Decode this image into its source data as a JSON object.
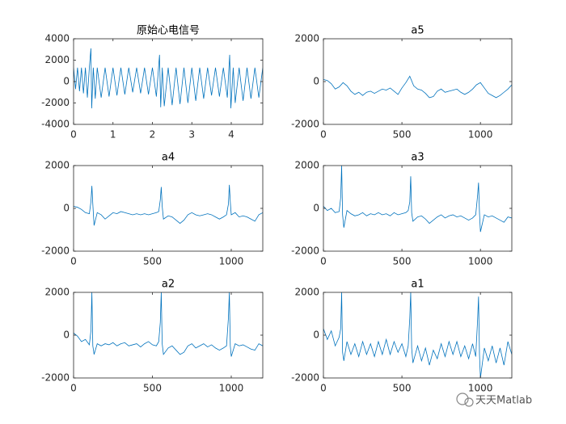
{
  "chart_data": [
    {
      "type": "line",
      "title": "原始心电信号",
      "color": "#0072bd",
      "x": [
        0,
        0.05,
        0.1,
        0.15,
        0.2,
        0.25,
        0.3,
        0.35,
        0.4,
        0.44,
        0.46,
        0.5,
        0.55,
        0.6,
        0.7,
        0.8,
        0.9,
        1.0,
        1.1,
        1.2,
        1.3,
        1.4,
        1.5,
        1.6,
        1.7,
        1.8,
        1.9,
        2.0,
        2.1,
        2.18,
        2.21,
        2.25,
        2.3,
        2.4,
        2.5,
        2.6,
        2.7,
        2.8,
        2.9,
        3.0,
        3.1,
        3.2,
        3.3,
        3.4,
        3.5,
        3.6,
        3.7,
        3.8,
        3.9,
        3.96,
        3.99,
        4.05,
        4.1,
        4.2,
        4.3,
        4.4,
        4.5,
        4.6,
        4.7,
        4.8
      ],
      "values": [
        1300,
        -700,
        1300,
        -900,
        1300,
        -1100,
        1300,
        -1500,
        1300,
        3100,
        -2500,
        1300,
        -1600,
        1300,
        -1500,
        1300,
        -1400,
        1300,
        -1300,
        1300,
        -1200,
        1300,
        -1000,
        1300,
        -1100,
        1300,
        -1200,
        1300,
        -1400,
        2500,
        -2400,
        1300,
        -2300,
        1300,
        -2200,
        1300,
        -2100,
        1300,
        -2000,
        1300,
        -1800,
        1300,
        -1600,
        1300,
        -1300,
        1300,
        -1400,
        1300,
        -1500,
        2500,
        -2500,
        1300,
        -2000,
        1300,
        -1800,
        1300,
        -1600,
        1300,
        -1500,
        1300
      ],
      "xlim": [
        0,
        4.8
      ],
      "ylim": [
        -4000,
        4000
      ],
      "xticks": [
        0,
        1,
        2,
        3,
        4
      ],
      "yticks": [
        -4000,
        -2000,
        0,
        2000,
        4000
      ]
    },
    {
      "type": "line",
      "title": "a5",
      "color": "#0072bd",
      "x": [
        0,
        25,
        50,
        75,
        100,
        125,
        150,
        175,
        200,
        225,
        250,
        275,
        300,
        325,
        350,
        375,
        400,
        425,
        450,
        475,
        500,
        525,
        550,
        575,
        600,
        625,
        650,
        675,
        700,
        725,
        750,
        775,
        800,
        825,
        850,
        875,
        900,
        925,
        950,
        975,
        1000,
        1025,
        1050,
        1075,
        1100,
        1125,
        1150,
        1175,
        1200
      ],
      "values": [
        100,
        50,
        -100,
        -350,
        -250,
        -50,
        -200,
        -450,
        -600,
        -500,
        -650,
        -500,
        -450,
        -550,
        -450,
        -350,
        -400,
        -300,
        -450,
        -600,
        -300,
        -50,
        250,
        -200,
        -350,
        -400,
        -550,
        -750,
        -700,
        -450,
        -350,
        -500,
        -450,
        -400,
        -350,
        -500,
        -600,
        -500,
        -350,
        -150,
        -50,
        -300,
        -550,
        -650,
        -750,
        -650,
        -500,
        -350,
        -150
      ],
      "xlim": [
        0,
        1200
      ],
      "ylim": [
        -2000,
        2000
      ],
      "xticks": [
        0,
        500,
        1000
      ],
      "yticks": [
        -2000,
        0,
        2000
      ]
    },
    {
      "type": "line",
      "title": "a4",
      "color": "#0072bd",
      "x": [
        0,
        25,
        50,
        75,
        100,
        110,
        116,
        122,
        130,
        150,
        175,
        200,
        225,
        250,
        275,
        300,
        325,
        350,
        375,
        400,
        425,
        450,
        475,
        500,
        525,
        540,
        550,
        556,
        562,
        570,
        600,
        625,
        650,
        675,
        700,
        725,
        750,
        775,
        800,
        825,
        850,
        875,
        900,
        925,
        950,
        970,
        982,
        988,
        994,
        1000,
        1025,
        1050,
        1075,
        1100,
        1125,
        1150,
        1175,
        1200
      ],
      "values": [
        100,
        50,
        -50,
        -200,
        -250,
        300,
        1050,
        200,
        -800,
        -200,
        -300,
        -500,
        -350,
        -200,
        -250,
        -150,
        -200,
        -250,
        -300,
        -250,
        -300,
        -250,
        -300,
        -250,
        -200,
        -150,
        400,
        1000,
        100,
        -500,
        -350,
        -400,
        -550,
        -700,
        -550,
        -300,
        -200,
        -300,
        -350,
        -300,
        -250,
        -300,
        -400,
        -500,
        -400,
        -300,
        200,
        1100,
        300,
        -300,
        -200,
        -400,
        -350,
        -400,
        -500,
        -600,
        -300,
        -200
      ],
      "xlim": [
        0,
        1200
      ],
      "ylim": [
        -2000,
        2000
      ],
      "xticks": [
        0,
        500,
        1000
      ],
      "yticks": [
        -2000,
        0,
        2000
      ]
    },
    {
      "type": "line",
      "title": "a3",
      "color": "#0072bd",
      "x": [
        0,
        25,
        50,
        75,
        100,
        110,
        116,
        122,
        130,
        150,
        175,
        200,
        225,
        250,
        275,
        300,
        325,
        350,
        375,
        400,
        425,
        450,
        475,
        500,
        525,
        540,
        550,
        556,
        562,
        570,
        600,
        625,
        650,
        675,
        700,
        725,
        750,
        775,
        800,
        825,
        850,
        875,
        900,
        925,
        950,
        970,
        982,
        988,
        994,
        1000,
        1025,
        1050,
        1075,
        1100,
        1125,
        1150,
        1175,
        1200
      ],
      "values": [
        100,
        -100,
        0,
        -200,
        -150,
        500,
        2000,
        -300,
        -900,
        -100,
        -250,
        -350,
        -300,
        -200,
        -350,
        -250,
        -300,
        -200,
        -300,
        -250,
        -350,
        -200,
        -300,
        -250,
        -200,
        -100,
        300,
        1500,
        -200,
        -600,
        -400,
        -350,
        -500,
        -700,
        -550,
        -400,
        -300,
        -450,
        -350,
        -300,
        -400,
        -350,
        -450,
        -550,
        -450,
        -300,
        600,
        1200,
        -200,
        -1100,
        -300,
        -400,
        -350,
        -450,
        -550,
        -650,
        -400,
        -450
      ],
      "xlim": [
        0,
        1200
      ],
      "ylim": [
        -2000,
        2000
      ],
      "xticks": [
        0,
        500,
        1000
      ],
      "yticks": [
        -2000,
        0,
        2000
      ]
    },
    {
      "type": "line",
      "title": "a2",
      "color": "#0072bd",
      "x": [
        0,
        25,
        50,
        75,
        100,
        110,
        116,
        122,
        130,
        150,
        175,
        200,
        225,
        250,
        275,
        300,
        325,
        350,
        375,
        400,
        425,
        450,
        475,
        500,
        525,
        540,
        550,
        556,
        562,
        570,
        600,
        625,
        650,
        675,
        700,
        725,
        750,
        775,
        800,
        825,
        850,
        875,
        900,
        925,
        950,
        970,
        982,
        988,
        994,
        1000,
        1025,
        1050,
        1075,
        1100,
        1125,
        1150,
        1175,
        1200
      ],
      "values": [
        100,
        -50,
        -300,
        -200,
        -450,
        200,
        2000,
        -500,
        -900,
        -400,
        -500,
        -400,
        -450,
        -350,
        -500,
        -400,
        -350,
        -500,
        -450,
        -400,
        -550,
        -400,
        -300,
        -450,
        -500,
        -300,
        600,
        2000,
        -400,
        -900,
        -600,
        -500,
        -700,
        -900,
        -800,
        -500,
        -400,
        -600,
        -500,
        -400,
        -550,
        -450,
        -600,
        -700,
        -600,
        -500,
        800,
        2000,
        -500,
        -1000,
        -400,
        -500,
        -450,
        -550,
        -650,
        -700,
        -400,
        -500
      ],
      "xlim": [
        0,
        1200
      ],
      "ylim": [
        -2000,
        2000
      ],
      "xticks": [
        0,
        500,
        1000
      ],
      "yticks": [
        -2000,
        0,
        2000
      ]
    },
    {
      "type": "line",
      "title": "a1",
      "color": "#0072bd",
      "x": [
        0,
        25,
        50,
        75,
        100,
        110,
        116,
        122,
        130,
        150,
        175,
        200,
        225,
        250,
        275,
        300,
        325,
        350,
        375,
        400,
        425,
        450,
        475,
        500,
        525,
        540,
        550,
        556,
        562,
        570,
        600,
        625,
        650,
        675,
        700,
        725,
        750,
        775,
        800,
        825,
        850,
        875,
        900,
        925,
        950,
        970,
        982,
        988,
        994,
        1000,
        1025,
        1050,
        1075,
        1100,
        1125,
        1150,
        1175,
        1200
      ],
      "values": [
        300,
        -200,
        200,
        -500,
        -100,
        300,
        2000,
        -800,
        -1200,
        -300,
        -900,
        -400,
        -1000,
        -300,
        -900,
        -400,
        -1000,
        -300,
        -900,
        -200,
        -900,
        -300,
        -800,
        -400,
        -1000,
        -500,
        800,
        2000,
        -600,
        -1300,
        -500,
        -1200,
        -600,
        -1400,
        -700,
        -1100,
        -400,
        -1000,
        -300,
        -900,
        -300,
        -1000,
        -500,
        -1100,
        -400,
        -1000,
        700,
        1800,
        -900,
        -2000,
        -600,
        -1200,
        -500,
        -1300,
        -600,
        -1400,
        -300,
        -900
      ],
      "xlim": [
        0,
        1200
      ],
      "ylim": [
        -2000,
        2000
      ],
      "xticks": [
        0,
        500,
        1000
      ],
      "yticks": [
        -2000,
        0,
        2000
      ]
    }
  ],
  "watermark": "天天Matlab"
}
